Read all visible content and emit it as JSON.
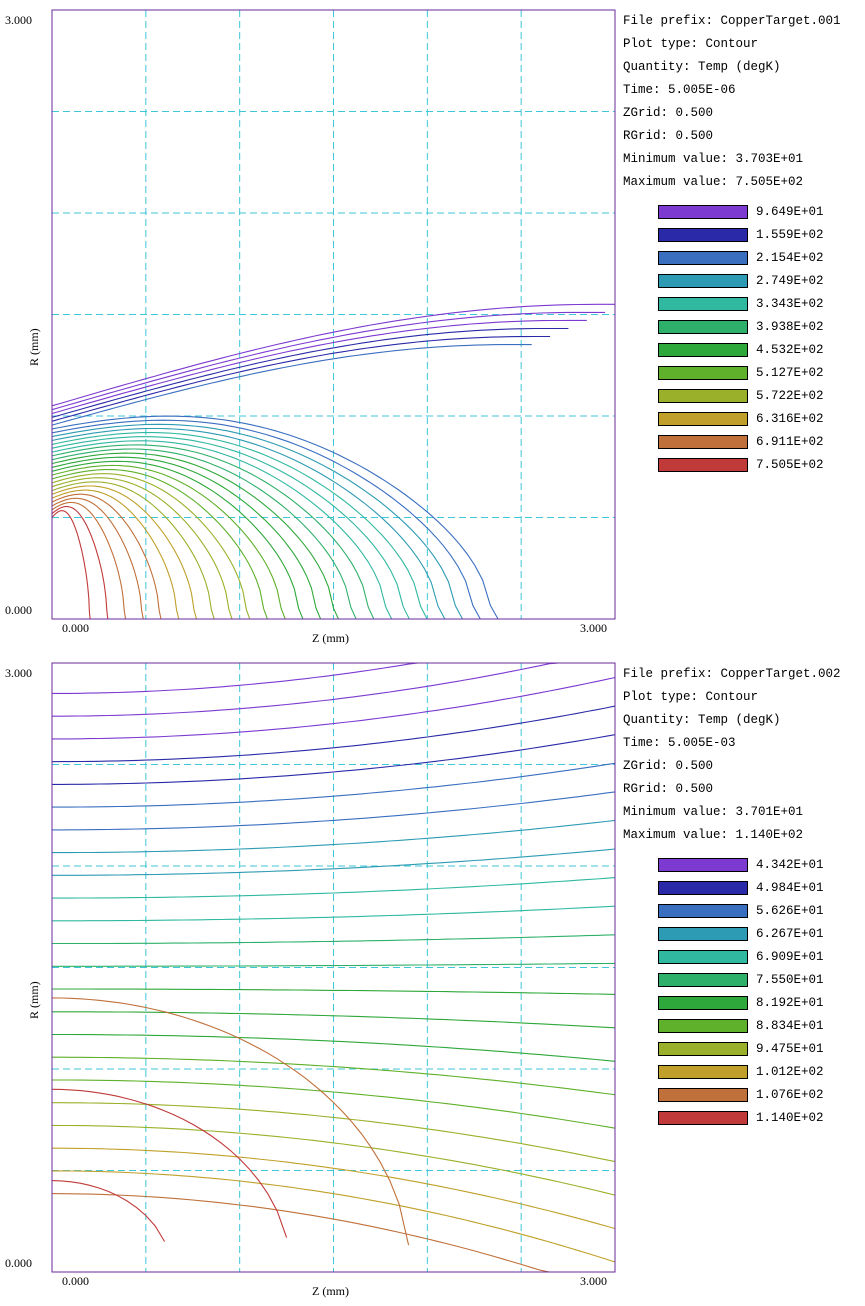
{
  "chart_data": [
    {
      "type": "contour",
      "xlabel": "Z (mm)",
      "ylabel": "R (mm)",
      "x_ticks": [
        "0.000",
        "3.000"
      ],
      "y_ticks": [
        "0.000",
        "3.000"
      ],
      "xlim": [
        0,
        3
      ],
      "ylim": [
        0,
        3
      ],
      "grid": true,
      "info": {
        "file_prefix": "File prefix: CopperTarget.001",
        "plot_type": "Plot type: Contour",
        "quantity": "Quantity: Temp (degK)",
        "time": "Time:   5.005E-06",
        "zgrid": "ZGrid:        0.500",
        "rgrid": "RGrid:        0.500",
        "min_value": "Minimum value:   3.703E+01",
        "max_value": "Maximum value:   7.505E+02"
      },
      "levels": [
        "9.649E+01",
        "1.559E+02",
        "2.154E+02",
        "2.749E+02",
        "3.343E+02",
        "3.938E+02",
        "4.532E+02",
        "5.127E+02",
        "5.722E+02",
        "6.316E+02",
        "6.911E+02",
        "7.505E+02"
      ],
      "colors": [
        "#7d3ad1",
        "#2a2aa8",
        "#3a6fc0",
        "#2d9bb3",
        "#30b8a0",
        "#2fb06a",
        "#2ea83a",
        "#5fb02a",
        "#9ab02a",
        "#c0a02a",
        "#c0703a",
        "#c03a3a"
      ]
    },
    {
      "type": "contour",
      "xlabel": "Z (mm)",
      "ylabel": "R (mm)",
      "x_ticks": [
        "0.000",
        "3.000"
      ],
      "y_ticks": [
        "0.000",
        "3.000"
      ],
      "xlim": [
        0,
        3
      ],
      "ylim": [
        0,
        3
      ],
      "grid": true,
      "info": {
        "file_prefix": "File prefix: CopperTarget.002",
        "plot_type": "Plot type: Contour",
        "quantity": "Quantity: Temp (degK)",
        "time": "Time:   5.005E-03",
        "zgrid": "ZGrid:        0.500",
        "rgrid": "RGrid:        0.500",
        "min_value": "Minimum value:   3.701E+01",
        "max_value": "Maximum value:   1.140E+02"
      },
      "levels": [
        "4.342E+01",
        "4.984E+01",
        "5.626E+01",
        "6.267E+01",
        "6.909E+01",
        "7.550E+01",
        "8.192E+01",
        "8.834E+01",
        "9.475E+01",
        "1.012E+02",
        "1.076E+02",
        "1.140E+02"
      ],
      "colors": [
        "#7d3ad1",
        "#2a2aa8",
        "#3a6fc0",
        "#2d9bb3",
        "#30b8a0",
        "#2fb06a",
        "#2ea83a",
        "#5fb02a",
        "#9ab02a",
        "#c0a02a",
        "#c0703a",
        "#c03a3a"
      ]
    }
  ]
}
